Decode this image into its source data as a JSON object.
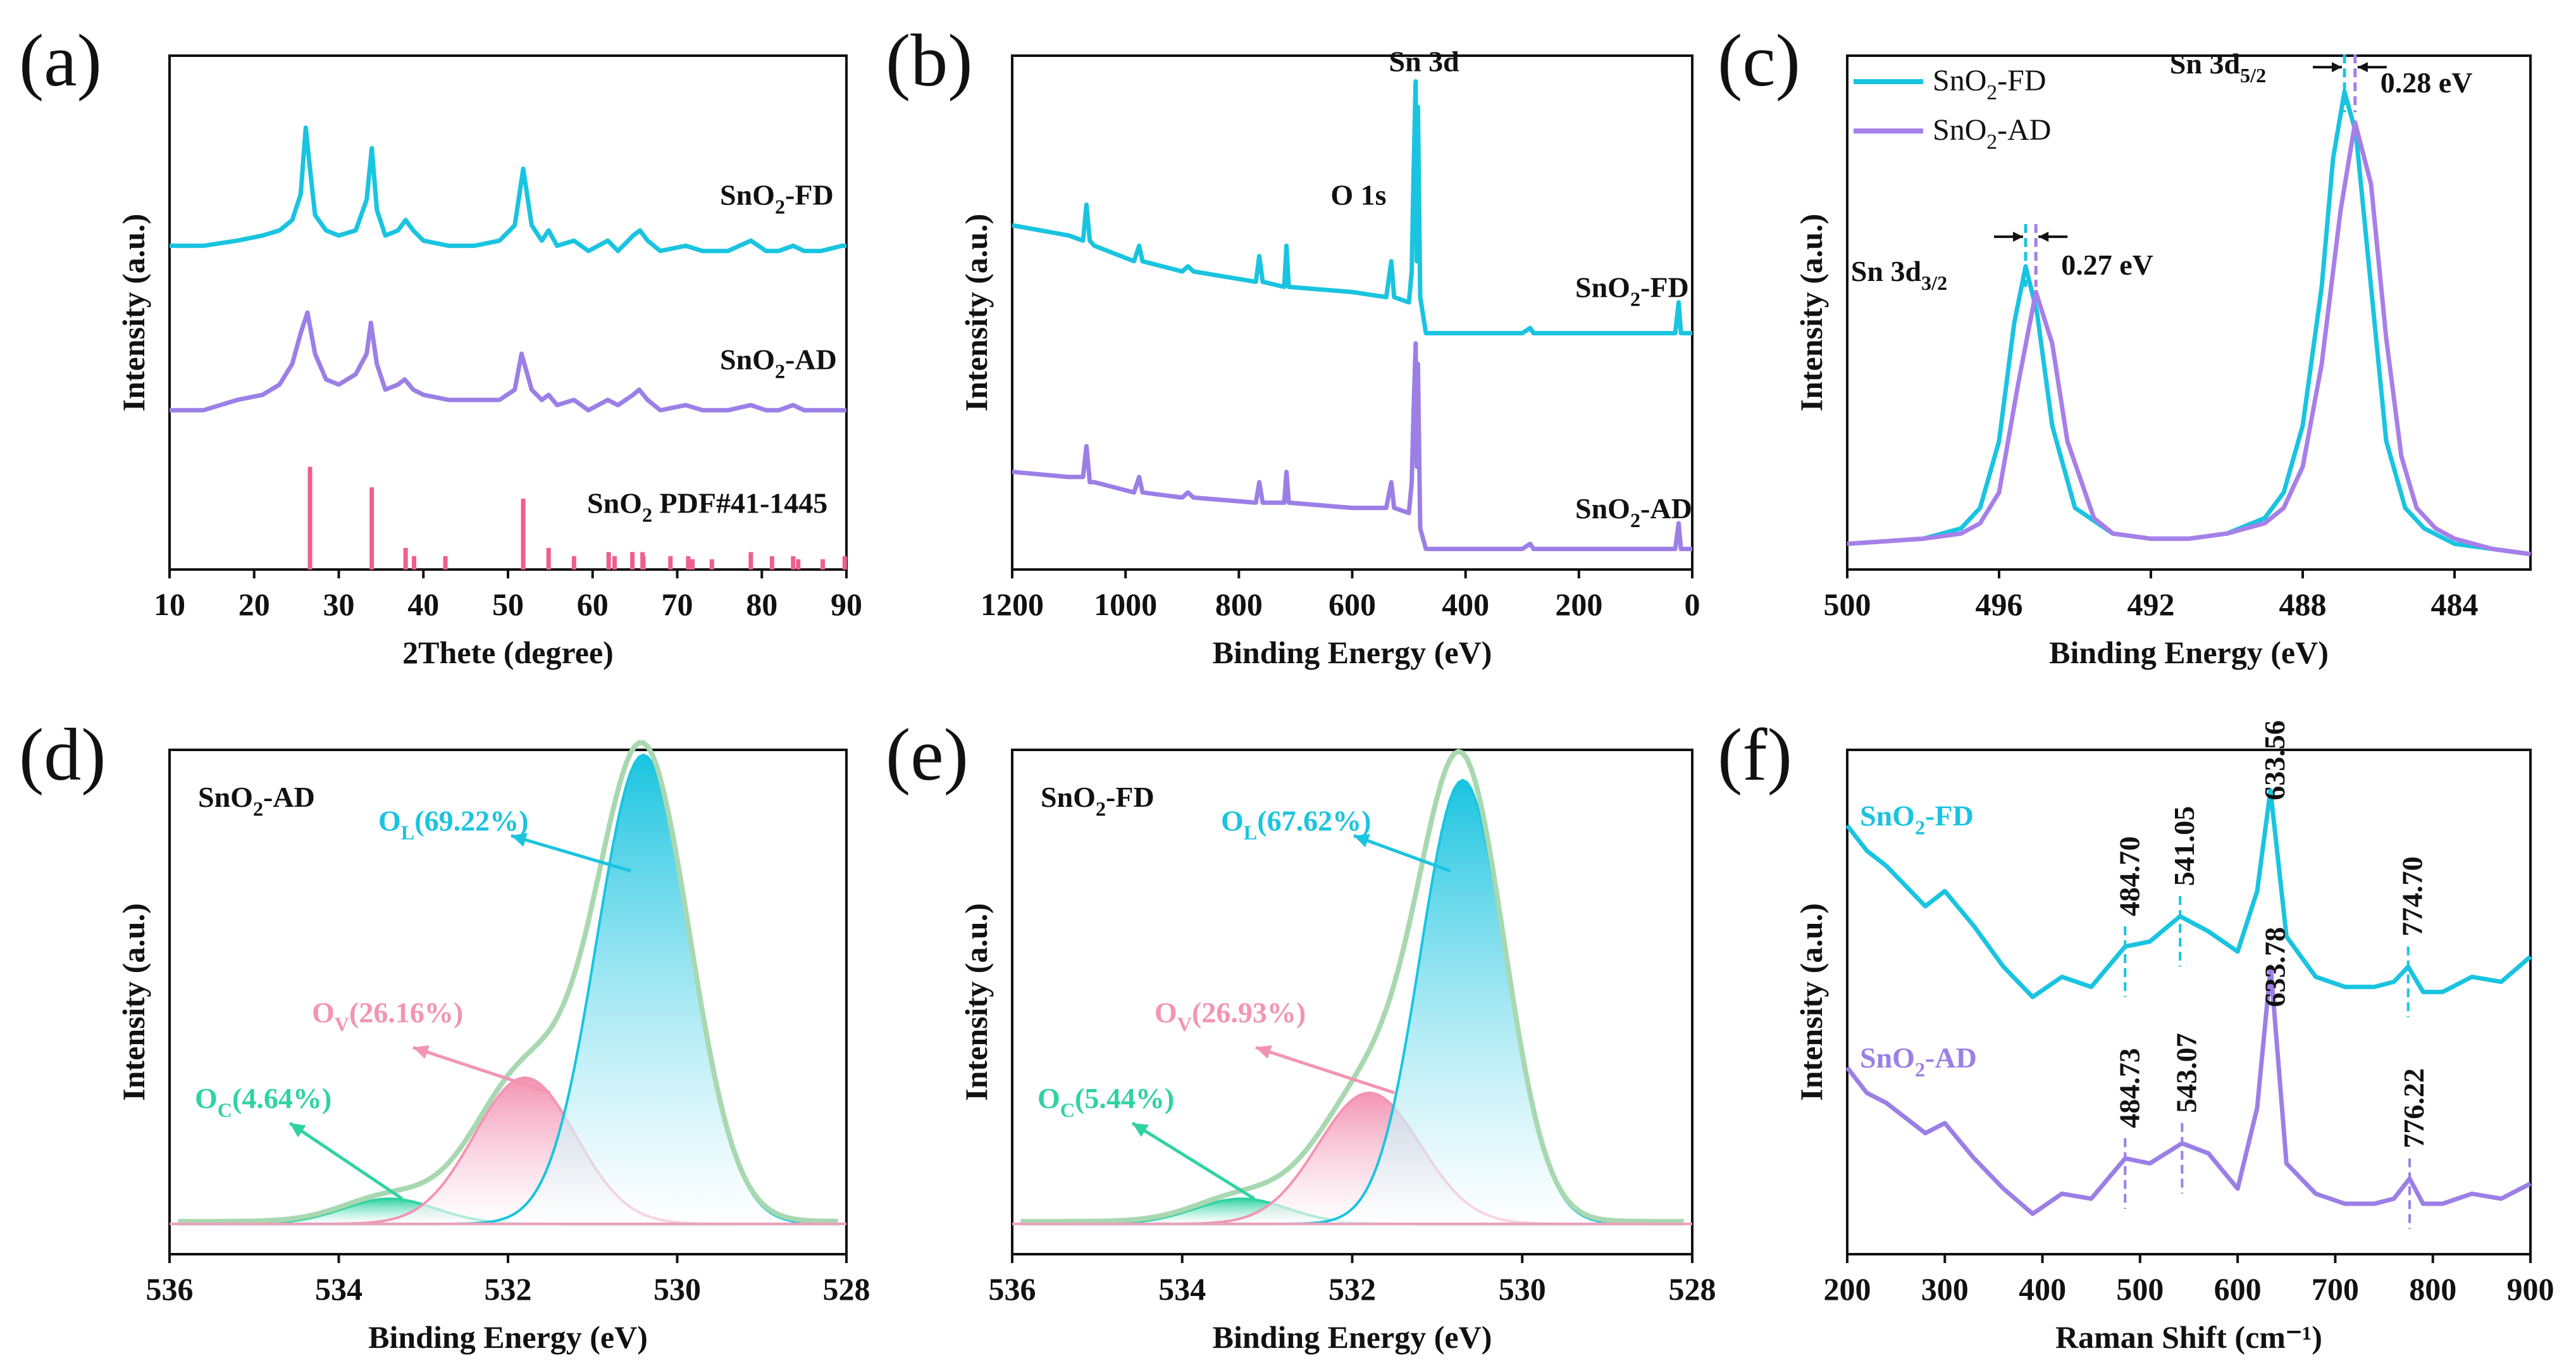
{
  "chart_data": [
    {
      "id": "a",
      "panel_label": "(a)",
      "type": "line",
      "title": "",
      "xlabel": "2Thete (degree)",
      "ylabel": "Intensity (a.u.)",
      "xlim": [
        10,
        90
      ],
      "xticks": [
        "10",
        "20",
        "30",
        "40",
        "50",
        "60",
        "70",
        "80",
        "90"
      ],
      "xtick_values": [
        10,
        20,
        30,
        40,
        50,
        60,
        70,
        80,
        90
      ],
      "ylim": [
        0,
        100
      ],
      "series": [
        {
          "name": "SnO2-FD",
          "label_parts": [
            "SnO",
            "2",
            "-FD"
          ],
          "color": "#19c4e0",
          "x": [
            10,
            14,
            18,
            21,
            23,
            24.5,
            25.5,
            26.1,
            26.6,
            27.2,
            28.5,
            30,
            32,
            33.3,
            33.9,
            34.5,
            35.5,
            37,
            37.9,
            38.8,
            40,
            43,
            46,
            49,
            50.8,
            51.8,
            52.8,
            54,
            54.8,
            55.8,
            57.8,
            59.5,
            61.8,
            63,
            64.8,
            65.6,
            66.5,
            68,
            71,
            73,
            76,
            78.7,
            80.5,
            82,
            83.7,
            85,
            87,
            89.5,
            90
          ],
          "y": [
            63,
            63,
            64,
            65,
            66,
            68,
            73,
            86,
            78,
            69,
            66,
            65,
            66,
            72,
            82,
            70,
            65,
            66,
            68,
            66,
            64,
            63,
            63,
            64,
            67,
            78,
            67,
            64,
            66,
            63,
            64,
            62,
            64,
            62,
            65,
            66,
            64,
            62,
            63,
            62,
            62,
            64,
            62,
            62,
            63,
            62,
            62,
            63,
            63
          ]
        },
        {
          "name": "SnO2-AD",
          "label_parts": [
            "SnO",
            "2",
            "-AD"
          ],
          "color": "#9b7fe6",
          "x": [
            10,
            14,
            18,
            21,
            23,
            24.5,
            25.5,
            26.3,
            27.2,
            28.5,
            30,
            32,
            33.3,
            33.8,
            34.5,
            35.5,
            37,
            37.8,
            38.8,
            40,
            43,
            46,
            49,
            50.8,
            51.6,
            52.8,
            54,
            54.8,
            55.8,
            57.8,
            59.5,
            61.8,
            63,
            64.8,
            65.5,
            66.5,
            68,
            71,
            73,
            76,
            78.7,
            80.5,
            82,
            83.7,
            85,
            87,
            89.5,
            90
          ],
          "y": [
            31,
            31,
            33,
            34,
            36,
            40,
            46,
            50,
            42,
            37,
            36,
            38,
            42,
            48,
            40,
            35,
            36,
            37,
            35,
            34,
            33,
            33,
            33,
            35,
            42,
            35,
            33,
            34,
            32,
            33,
            31,
            33,
            32,
            34,
            35,
            33,
            31,
            32,
            31,
            31,
            32,
            31,
            31,
            32,
            31,
            31,
            31,
            31
          ]
        }
      ],
      "reference": {
        "name": "SnO2 PDF#41-1445",
        "label_parts": [
          "SnO",
          "2",
          " PDF#41-1445"
        ],
        "color": "#ee5f8e",
        "positions": [
          26.6,
          33.9,
          37.9,
          38.9,
          42.6,
          51.8,
          54.8,
          57.8,
          61.9,
          62.6,
          64.7,
          65.9,
          66.0,
          69.2,
          71.3,
          71.8,
          74.1,
          78.7,
          81.2,
          83.7,
          84.3,
          87.2,
          89.8
        ],
        "heights": [
          100,
          80,
          21,
          13,
          13,
          69,
          21,
          13,
          17,
          13,
          17,
          17,
          13,
          13,
          13,
          10,
          10,
          17,
          13,
          13,
          10,
          10,
          13
        ]
      }
    },
    {
      "id": "b",
      "panel_label": "(b)",
      "type": "line",
      "title": "",
      "xlabel": "Binding Energy (eV)",
      "ylabel": "Intensity (a.u.)",
      "xlim": [
        1200,
        0
      ],
      "xticks": [
        "1200",
        "1000",
        "800",
        "600",
        "400",
        "200",
        "0"
      ],
      "xtick_values": [
        1200,
        1000,
        800,
        600,
        400,
        200,
        0
      ],
      "ylim": [
        0,
        100
      ],
      "annotations": [
        {
          "text": "Sn 3d",
          "x": 485
        },
        {
          "text": "O 1s",
          "x": 560
        }
      ],
      "series": [
        {
          "name": "SnO2-FD",
          "label_parts": [
            "SnO",
            "2",
            "-FD"
          ],
          "color": "#19c4e0",
          "x": [
            1200,
            1100,
            1075,
            1069,
            1063,
            1055,
            985,
            976,
            970,
            900,
            890,
            880,
            770,
            764,
            758,
            720,
            716,
            712,
            600,
            540,
            531,
            526,
            500,
            495,
            492,
            488,
            486,
            484,
            480,
            470,
            300,
            286,
            280,
            100,
            30,
            24,
            20,
            0
          ],
          "y": [
            67,
            65,
            64,
            71,
            64,
            63,
            60,
            63,
            60,
            58,
            59,
            58,
            56,
            61,
            56,
            55,
            63,
            55,
            54,
            53,
            60,
            53,
            52,
            58,
            76,
            95,
            60,
            90,
            53,
            46,
            46,
            47,
            46,
            46,
            46,
            52,
            46,
            46
          ]
        },
        {
          "name": "SnO2-AD",
          "label_parts": [
            "SnO",
            "2",
            "-AD"
          ],
          "color": "#9b7fe6",
          "x": [
            1200,
            1100,
            1075,
            1069,
            1063,
            1055,
            985,
            976,
            970,
            900,
            890,
            880,
            770,
            764,
            758,
            720,
            716,
            712,
            600,
            540,
            531,
            526,
            500,
            495,
            492,
            488,
            486,
            484,
            480,
            470,
            300,
            286,
            280,
            100,
            30,
            24,
            20,
            0
          ],
          "y": [
            19,
            18,
            18,
            24,
            17,
            17,
            15,
            18,
            15,
            14,
            15,
            14,
            13,
            17,
            13,
            13,
            19,
            13,
            12,
            12,
            17,
            12,
            11,
            17,
            30,
            44,
            20,
            40,
            8,
            4,
            4,
            5,
            4,
            4,
            4,
            9,
            4,
            4
          ]
        }
      ]
    },
    {
      "id": "c",
      "panel_label": "(c)",
      "type": "line",
      "title": "",
      "xlabel": "Binding Energy (eV)",
      "ylabel": "Intensity (a.u.)",
      "xlim": [
        500,
        482
      ],
      "xticks": [
        "500",
        "496",
        "492",
        "488",
        "484"
      ],
      "xtick_values": [
        500,
        496,
        492,
        488,
        484
      ],
      "ylim": [
        0,
        100
      ],
      "annotations": [
        {
          "text_parts": [
            "Sn 3d",
            "3/2"
          ],
          "shift": "0.27 eV",
          "x1": 495.3,
          "x2": 495.03
        },
        {
          "text_parts": [
            "Sn 3d",
            "5/2"
          ],
          "shift": "0.28 eV",
          "x1": 486.9,
          "x2": 486.62
        }
      ],
      "series": [
        {
          "name": "SnO2-FD",
          "label_parts": [
            "SnO",
            "2",
            "-FD"
          ],
          "color": "#19c4e0",
          "x": [
            500,
            498,
            497,
            496.5,
            496,
            495.6,
            495.3,
            495,
            494.6,
            494,
            493,
            492,
            491,
            490,
            489,
            488.5,
            488,
            487.5,
            487.2,
            486.9,
            486.6,
            486.2,
            485.8,
            485.3,
            484.8,
            484,
            483,
            482
          ],
          "y": [
            5,
            6,
            8,
            12,
            25,
            48,
            59,
            50,
            28,
            12,
            7,
            6,
            6,
            7,
            10,
            15,
            28,
            55,
            80,
            93,
            85,
            55,
            25,
            12,
            8,
            5,
            4,
            3
          ]
        },
        {
          "name": "SnO2-AD",
          "label_parts": [
            "SnO",
            "2",
            "-AD"
          ],
          "color": "#a77fe8",
          "x": [
            500,
            498,
            497,
            496.5,
            496,
            495.5,
            495.03,
            494.6,
            494.2,
            493.5,
            493,
            492,
            491,
            490,
            489,
            488.5,
            488,
            487.5,
            487,
            486.62,
            486.2,
            485.8,
            485.4,
            485,
            484.5,
            484,
            483,
            482
          ],
          "y": [
            5,
            6,
            7,
            9,
            15,
            36,
            54,
            44,
            25,
            10,
            7,
            6,
            6,
            7,
            9,
            12,
            20,
            40,
            70,
            87,
            75,
            45,
            22,
            12,
            8,
            6,
            4,
            3
          ]
        }
      ]
    },
    {
      "id": "d",
      "panel_label": "(d)",
      "type": "area",
      "title": "SnO2-AD",
      "title_parts": [
        "SnO",
        "2",
        "-AD"
      ],
      "xlabel": "Binding Energy (eV)",
      "ylabel": "Intensity (a.u.)",
      "xlim": [
        536,
        528
      ],
      "xticks": [
        "536",
        "534",
        "532",
        "530",
        "528"
      ],
      "xtick_values": [
        536,
        534,
        532,
        530,
        528
      ],
      "ylim": [
        0,
        100
      ],
      "baseline": 6,
      "components": [
        {
          "name": "O_C",
          "label_parts": [
            "O",
            "C",
            "(4.64%)"
          ],
          "percent": 4.64,
          "center": 533.4,
          "sigma": 0.55,
          "height": 5,
          "color": "#2fd3a1"
        },
        {
          "name": "O_V",
          "label_parts": [
            "O",
            "V",
            "(26.16%)"
          ],
          "percent": 26.16,
          "center": 531.8,
          "sigma": 0.6,
          "height": 29,
          "color": "#f394b3"
        },
        {
          "name": "O_L",
          "label_parts": [
            "O",
            "L",
            "(69.22%)"
          ],
          "percent": 69.22,
          "center": 530.4,
          "sigma": 0.55,
          "height": 93,
          "color": "#19c4e0"
        }
      ],
      "envelope_color": "#a8d8b0"
    },
    {
      "id": "e",
      "panel_label": "(e)",
      "type": "area",
      "title": "SnO2-FD",
      "title_parts": [
        "SnO",
        "2",
        "-FD"
      ],
      "xlabel": "Binding Energy (eV)",
      "ylabel": "Intensity (a.u.)",
      "xlim": [
        536,
        528
      ],
      "xticks": [
        "536",
        "534",
        "532",
        "530",
        "528"
      ],
      "xtick_values": [
        536,
        534,
        532,
        530,
        528
      ],
      "ylim": [
        0,
        100
      ],
      "baseline": 6,
      "components": [
        {
          "name": "O_C",
          "label_parts": [
            "O",
            "C",
            "(5.44%)"
          ],
          "percent": 5.44,
          "center": 533.3,
          "sigma": 0.55,
          "height": 5,
          "color": "#2fd3a1"
        },
        {
          "name": "O_V",
          "label_parts": [
            "O",
            "V",
            "(26.93%)"
          ],
          "percent": 26.93,
          "center": 531.8,
          "sigma": 0.6,
          "height": 26,
          "color": "#f394b3"
        },
        {
          "name": "O_L",
          "label_parts": [
            "O",
            "L",
            "(67.62%)"
          ],
          "percent": 67.62,
          "center": 530.7,
          "sigma": 0.5,
          "height": 88,
          "color": "#19c4e0"
        }
      ],
      "envelope_color": "#a8d8b0"
    },
    {
      "id": "f",
      "panel_label": "(f)",
      "type": "line",
      "title": "",
      "xlabel": "Raman Shift (cm⁻¹)",
      "ylabel": "Intensity (a.u.)",
      "xlim": [
        200,
        900
      ],
      "xticks": [
        "200",
        "300",
        "400",
        "500",
        "600",
        "700",
        "800",
        "900"
      ],
      "xtick_values": [
        200,
        300,
        400,
        500,
        600,
        700,
        800,
        900
      ],
      "ylim": [
        0,
        100
      ],
      "series": [
        {
          "name": "SnO2-FD",
          "label_parts": [
            "SnO",
            "2",
            "-FD"
          ],
          "color": "#19c4e0",
          "peaks": [
            "484.70",
            "541.05",
            "633.56",
            "774.70"
          ],
          "peak_x": [
            484.7,
            541.05,
            633.56,
            774.7
          ],
          "x": [
            200,
            220,
            240,
            260,
            280,
            300,
            330,
            360,
            390,
            420,
            450,
            484.7,
            510,
            541,
            570,
            600,
            620,
            633.6,
            650,
            680,
            710,
            740,
            760,
            774.7,
            790,
            810,
            840,
            870,
            900
          ],
          "y": [
            85,
            80,
            77,
            73,
            69,
            72,
            65,
            57,
            51,
            55,
            53,
            61,
            62,
            67,
            64,
            60,
            72,
            92,
            63,
            55,
            53,
            53,
            54,
            57,
            52,
            52,
            55,
            54,
            59
          ]
        },
        {
          "name": "SnO2-AD",
          "label_parts": [
            "SnO",
            "2",
            "-AD"
          ],
          "color": "#9b7fe6",
          "peaks": [
            "484.73",
            "543.07",
            "633.78",
            "776.22"
          ],
          "peak_x": [
            484.73,
            543.07,
            633.78,
            776.22
          ],
          "x": [
            200,
            220,
            240,
            260,
            280,
            300,
            330,
            360,
            390,
            420,
            450,
            484.7,
            510,
            543,
            570,
            600,
            620,
            633.8,
            650,
            680,
            710,
            740,
            760,
            776.2,
            790,
            810,
            840,
            870,
            900
          ],
          "y": [
            37,
            32,
            30,
            27,
            24,
            26,
            19,
            13,
            8,
            12,
            11,
            19,
            18,
            22,
            20,
            13,
            29,
            57,
            18,
            12,
            10,
            10,
            11,
            15,
            10,
            10,
            12,
            11,
            14
          ]
        }
      ]
    }
  ]
}
